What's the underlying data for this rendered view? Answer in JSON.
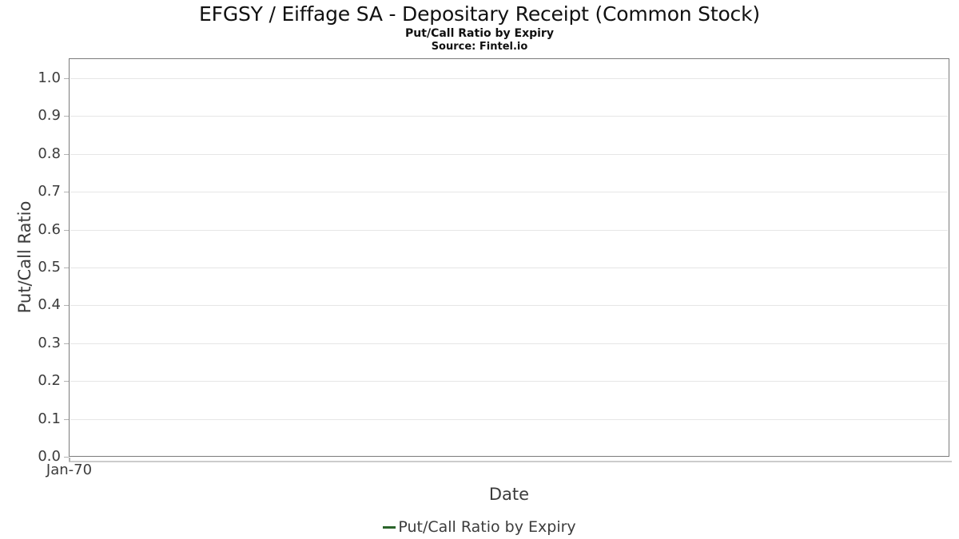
{
  "header": {
    "title": "EFGSY / Eiffage SA - Depositary Receipt (Common Stock)",
    "subtitle": "Put/Call Ratio by Expiry",
    "source": "Source: Fintel.io"
  },
  "chart_data": {
    "type": "line",
    "title": "EFGSY / Eiffage SA - Depositary Receipt (Common Stock)",
    "subtitle": "Put/Call Ratio by Expiry",
    "source": "Source: Fintel.io",
    "xlabel": "Date",
    "ylabel": "Put/Call Ratio",
    "x_ticks": [
      "Jan-70"
    ],
    "y_ticks": [
      {
        "label": "1.0",
        "value": 1.0
      },
      {
        "label": "0.9",
        "value": 0.9
      },
      {
        "label": "0.8",
        "value": 0.8
      },
      {
        "label": "0.7",
        "value": 0.7
      },
      {
        "label": "0.6",
        "value": 0.6
      },
      {
        "label": "0.5",
        "value": 0.5
      },
      {
        "label": "0.4",
        "value": 0.4
      },
      {
        "label": "0.3",
        "value": 0.3
      },
      {
        "label": "0.2",
        "value": 0.2
      },
      {
        "label": "0.1",
        "value": 0.1
      },
      {
        "label": "0.0",
        "value": 0.0
      }
    ],
    "ylim": [
      0.0,
      1.05
    ],
    "grid": true,
    "legend_position": "bottom",
    "series": [
      {
        "name": "Put/Call Ratio by Expiry",
        "color": "#2a642a",
        "x": [],
        "values": []
      }
    ]
  },
  "colors": {
    "text_primary": "#111111",
    "text_axis": "#3c3c3c",
    "plot_border": "#7b7b7b",
    "gridline": "#e6e6e6",
    "tick_mark": "#b3b3b3",
    "axis_underline": "#cccccc",
    "legend_line": "#2a642a"
  }
}
